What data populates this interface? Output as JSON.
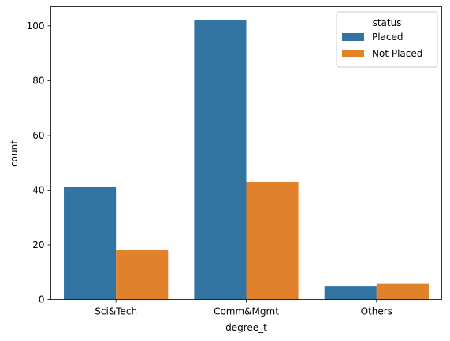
{
  "chart_data": {
    "type": "bar",
    "categories": [
      "Sci&Tech",
      "Comm&Mgmt",
      "Others"
    ],
    "series": [
      {
        "name": "Placed",
        "values": [
          41,
          102,
          5
        ],
        "color": "#3274a1"
      },
      {
        "name": "Not Placed",
        "values": [
          18,
          43,
          6
        ],
        "color": "#e1812c"
      }
    ],
    "xlabel": "degree_t",
    "ylabel": "count",
    "ylim": [
      0,
      107
    ],
    "yticks": [
      0,
      20,
      40,
      60,
      80,
      100
    ],
    "legend": {
      "title": "status",
      "placement": "top-right"
    },
    "grid": false
  }
}
